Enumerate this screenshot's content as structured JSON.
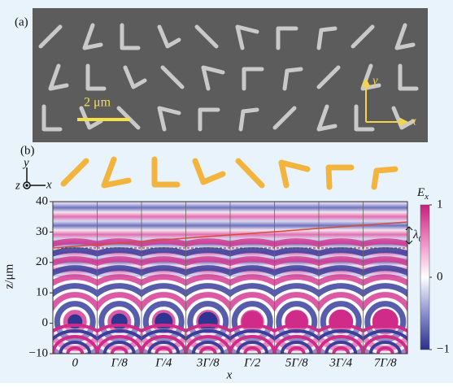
{
  "panel_a": {
    "label": "(a)",
    "scale_bar": "2 μm",
    "axis_x": "x",
    "axis_y": "y"
  },
  "panel_b": {
    "label": "(b)",
    "axis_y": "y",
    "axis_x": "x",
    "axis_z": "z",
    "y_axis_label": "z/μm",
    "x_axis_label": "x",
    "ylim": [
      -10,
      40
    ],
    "yticks": [
      40,
      30,
      20,
      10,
      0,
      {
        "value": -10,
        "label": "−10"
      }
    ],
    "categories": [
      "0",
      "Γ/8",
      "Γ/4",
      "3Γ/8",
      "Γ/2",
      "5Γ/8",
      "3Γ/4",
      "7Γ/8"
    ],
    "wavelength_label": {
      "text": "λ",
      "sub": "0"
    },
    "colorbar": {
      "title": {
        "text": "E",
        "sub": "x"
      },
      "lim": [
        -1,
        1
      ],
      "ticks": [
        1,
        0,
        {
          "value": -1,
          "label": "−1"
        }
      ]
    }
  }
}
